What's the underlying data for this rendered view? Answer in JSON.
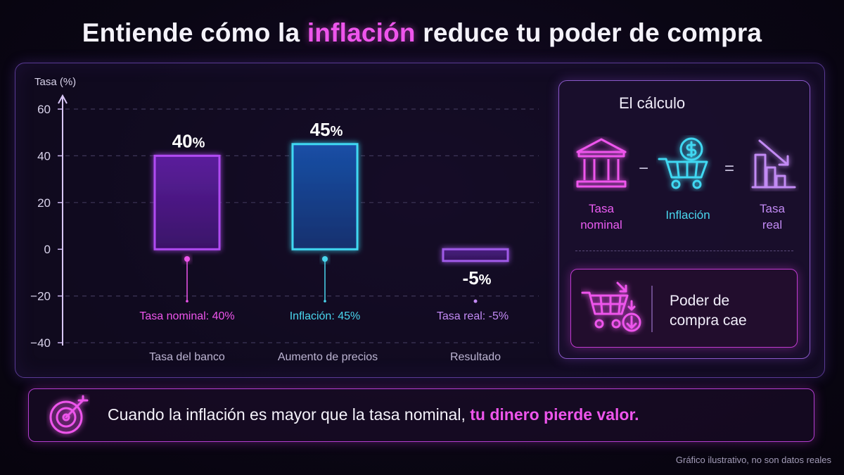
{
  "title": {
    "before": "Entiende cómo la",
    "highlight": "inflación",
    "after": "reduce tu poder de compra"
  },
  "colors": {
    "pink": "#ee55ec",
    "purple": "#b04cf2",
    "cyan": "#3fd8f2",
    "violet": "#c28af4",
    "background": "#0a0614"
  },
  "chart_data": {
    "type": "bar",
    "ylabel": "Tasa (%)",
    "ylim": [
      -40,
      60
    ],
    "yticks": [
      60,
      40,
      20,
      0,
      -20,
      -40
    ],
    "yticks_labels": [
      "60",
      "40",
      "20",
      "0",
      "−20",
      "−40"
    ],
    "grid": true,
    "categories": [
      "Tasa del banco",
      "Aumento de precios",
      "Resultado"
    ],
    "values": [
      40,
      45,
      -5
    ],
    "value_labels": [
      {
        "number": "40",
        "unit": "%"
      },
      {
        "number": "45",
        "unit": "%"
      },
      {
        "number": "-5",
        "unit": "%"
      }
    ],
    "annotations": [
      "Tasa nominal: 40%",
      "Inflación: 45%",
      "Tasa real: -5%"
    ],
    "bar_colors": [
      "#b04cf2",
      "#3fd8f2",
      "#a05ae8"
    ]
  },
  "calculation": {
    "title": "El cálculo",
    "minus": "−",
    "equals": "=",
    "items": [
      {
        "label": "Tasa\nnominal",
        "icon": "bank-icon"
      },
      {
        "label": "Inflación",
        "icon": "shopping-cart-dollar-icon"
      },
      {
        "label": "Tasa\nreal",
        "icon": "falling-bars-icon"
      }
    ],
    "result": {
      "text": "Poder de\ncompra cae",
      "icon": "cart-down-icon"
    }
  },
  "message": {
    "text": "Cuando la inflación es mayor que la tasa nominal,",
    "highlight": "tu dinero pierde valor.",
    "icon": "target-icon"
  },
  "footnote": "Gráfico ilustrativo, no son datos reales"
}
